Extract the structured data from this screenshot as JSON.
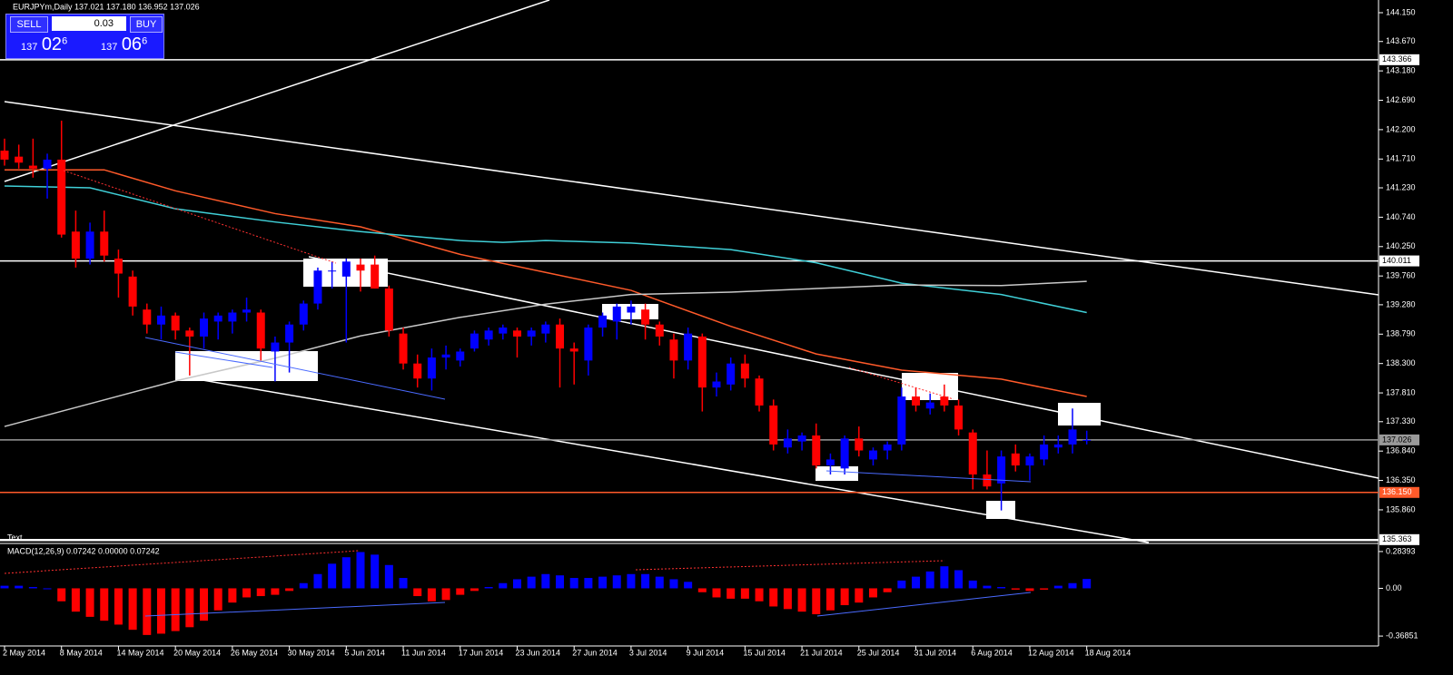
{
  "header": {
    "symbol": "EURJPYm,Daily 137.021 137.180 136.952 137.026"
  },
  "trade_panel": {
    "sell": "SELL",
    "buy": "BUY",
    "lot": "0.03",
    "sell_price": {
      "big": "137",
      "main": "02",
      "sup": "6"
    },
    "buy_price": {
      "big": "137",
      "main": "06",
      "sup": "6"
    }
  },
  "chart_data": {
    "type": "candlestick",
    "up_color": "#0000ff",
    "down_color": "#ff0000",
    "ylim": [
      135.345,
      144.362
    ],
    "yticks": [
      {
        "value": 144.15,
        "label": "144.150"
      },
      {
        "value": 143.67,
        "label": "143.670"
      },
      {
        "value": 143.18,
        "label": "143.180"
      },
      {
        "value": 142.69,
        "label": "142.690"
      },
      {
        "value": 142.2,
        "label": "142.200"
      },
      {
        "value": 141.71,
        "label": "141.710"
      },
      {
        "value": 141.23,
        "label": "141.230"
      },
      {
        "value": 140.74,
        "label": "140.740"
      },
      {
        "value": 140.25,
        "label": "140.250"
      },
      {
        "value": 139.76,
        "label": "139.760"
      },
      {
        "value": 139.28,
        "label": "139.280"
      },
      {
        "value": 138.79,
        "label": "138.790"
      },
      {
        "value": 138.3,
        "label": "138.300"
      },
      {
        "value": 137.81,
        "label": "137.810"
      },
      {
        "value": 137.33,
        "label": "137.330"
      },
      {
        "value": 136.84,
        "label": "136.840"
      },
      {
        "value": 136.35,
        "label": "136.350"
      },
      {
        "value": 135.86,
        "label": "135.860"
      }
    ],
    "price_lines": [
      {
        "value": 143.366,
        "color": "#ffffff"
      },
      {
        "value": 140.011,
        "color": "#ffffff"
      },
      {
        "value": 137.026,
        "color": "#9a9a9a"
      },
      {
        "value": {
          "value": 136.15,
          "label": "136.150"
        },
        "color": "#ff5a2a"
      },
      {
        "value": 135.363,
        "color": "#ffffff"
      }
    ],
    "annotation": "Text",
    "categories": [
      "2 May 2014",
      null,
      null,
      null,
      "8 May 2014",
      null,
      null,
      null,
      "14 May 2014",
      null,
      null,
      null,
      "20 May 2014",
      null,
      null,
      null,
      "26 May 2014",
      null,
      null,
      null,
      "30 May 2014",
      null,
      null,
      null,
      "5 Jun 2014",
      null,
      null,
      null,
      "11 Jun 2014",
      null,
      null,
      null,
      "17 Jun 2014",
      null,
      null,
      null,
      "23 Jun 2014",
      null,
      null,
      null,
      "27 Jun 2014",
      null,
      null,
      null,
      "3 Jul 2014",
      null,
      null,
      null,
      "9 Jul 2014",
      null,
      null,
      null,
      "15 Jul 2014",
      null,
      null,
      null,
      "21 Jul 2014",
      null,
      null,
      null,
      "25 Jul 2014",
      null,
      null,
      null,
      "31 Jul 2014",
      null,
      null,
      null,
      "6 Aug 2014",
      null,
      null,
      null,
      "12 Aug 2014",
      null,
      null,
      null,
      "18 Aug 2014"
    ],
    "open": [
      141.85,
      141.75,
      141.6,
      141.55,
      141.7,
      140.5,
      140.05,
      140.5,
      140.05,
      139.75,
      139.2,
      138.95,
      139.1,
      138.85,
      138.75,
      139.0,
      139.0,
      139.15,
      139.15,
      138.5,
      138.65,
      138.95,
      139.3,
      139.85,
      139.75,
      139.95,
      139.95,
      139.55,
      138.8,
      138.3,
      138.05,
      138.4,
      138.35,
      138.55,
      138.7,
      138.8,
      138.85,
      138.75,
      138.8,
      138.95,
      138.55,
      138.35,
      138.9,
      139.0,
      139.15,
      139.2,
      138.95,
      138.7,
      138.35,
      138.75,
      137.9,
      137.95,
      138.3,
      138.05,
      137.6,
      136.9,
      137.0,
      137.1,
      136.6,
      136.55,
      137.05,
      136.7,
      136.85,
      136.95,
      137.75,
      137.55,
      137.75,
      137.6,
      137.15,
      136.45,
      136.3,
      136.8,
      136.6,
      136.7,
      136.9,
      136.95,
      137.021
    ],
    "high": [
      142.05,
      141.95,
      142.05,
      141.8,
      142.35,
      140.85,
      140.65,
      140.85,
      140.2,
      139.85,
      139.3,
      139.25,
      139.15,
      138.9,
      139.15,
      139.15,
      139.2,
      139.4,
      139.2,
      138.75,
      139.0,
      139.35,
      139.9,
      140.0,
      140.05,
      140.05,
      140.1,
      139.6,
      138.9,
      138.45,
      138.55,
      138.6,
      138.55,
      138.85,
      138.9,
      138.95,
      138.9,
      138.9,
      139.0,
      139.05,
      138.65,
      138.95,
      139.15,
      139.3,
      139.35,
      139.3,
      139.0,
      138.8,
      138.9,
      138.8,
      138.15,
      138.4,
      138.45,
      138.1,
      137.7,
      137.2,
      137.15,
      137.3,
      136.8,
      137.1,
      137.25,
      136.9,
      137.0,
      137.9,
      137.9,
      137.8,
      137.95,
      137.7,
      137.2,
      136.85,
      136.85,
      136.95,
      136.8,
      137.1,
      137.1,
      137.55,
      137.18
    ],
    "low": [
      141.6,
      141.55,
      141.4,
      141.05,
      140.4,
      139.9,
      139.95,
      140.0,
      139.4,
      139.1,
      138.8,
      138.7,
      138.7,
      138.1,
      138.55,
      138.7,
      138.8,
      139.0,
      138.35,
      138.0,
      138.15,
      138.85,
      139.2,
      139.55,
      138.65,
      139.5,
      139.55,
      138.75,
      138.2,
      137.9,
      137.85,
      138.2,
      138.25,
      138.5,
      138.6,
      138.7,
      138.4,
      138.6,
      138.65,
      137.9,
      137.95,
      138.1,
      138.75,
      138.7,
      138.95,
      138.7,
      138.6,
      138.05,
      138.2,
      137.5,
      137.75,
      137.85,
      137.9,
      137.5,
      136.85,
      136.8,
      136.85,
      136.55,
      136.45,
      136.45,
      136.75,
      136.6,
      136.7,
      136.85,
      137.5,
      137.45,
      137.5,
      137.1,
      136.2,
      136.2,
      135.85,
      136.5,
      136.35,
      136.6,
      136.8,
      136.8,
      136.952
    ],
    "close": [
      141.7,
      141.65,
      141.55,
      141.7,
      140.45,
      140.05,
      140.5,
      140.1,
      139.8,
      139.25,
      138.95,
      139.1,
      138.85,
      138.75,
      139.05,
      139.1,
      139.15,
      139.2,
      138.55,
      138.65,
      138.95,
      139.3,
      139.85,
      139.85,
      140.0,
      139.85,
      139.55,
      138.85,
      138.3,
      138.05,
      138.4,
      138.45,
      138.5,
      138.8,
      138.85,
      138.9,
      138.75,
      138.85,
      138.95,
      138.55,
      138.5,
      138.9,
      139.1,
      139.25,
      139.25,
      138.95,
      138.75,
      138.35,
      138.8,
      137.9,
      138.0,
      138.3,
      138.05,
      137.6,
      136.95,
      137.05,
      137.1,
      136.6,
      136.7,
      137.05,
      136.85,
      136.85,
      136.95,
      137.75,
      137.6,
      137.65,
      137.6,
      137.2,
      136.45,
      136.25,
      136.75,
      136.6,
      136.75,
      136.95,
      136.95,
      137.2,
      137.026
    ],
    "moving_averages": [
      {
        "color": "#ff5a2a",
        "x": [
          0,
          7,
          12,
          19,
          25,
          32,
          38,
          44,
          51,
          57,
          63,
          70,
          76
        ],
        "values": [
          141.53,
          141.53,
          141.18,
          140.8,
          140.58,
          140.12,
          139.82,
          139.52,
          138.92,
          138.46,
          138.19,
          138.04,
          137.75
        ]
      },
      {
        "color": "#40d0d8",
        "x": [
          0,
          6,
          12,
          19,
          25,
          32,
          35,
          38,
          44,
          51,
          57,
          63,
          70,
          76
        ],
        "values": [
          141.26,
          141.23,
          140.88,
          140.66,
          140.5,
          140.35,
          140.32,
          140.35,
          140.31,
          140.2,
          139.98,
          139.64,
          139.45,
          139.15
        ]
      },
      {
        "color": "#c8c8c8",
        "x": [
          0,
          12,
          19,
          25,
          32,
          38,
          44,
          51,
          57,
          63,
          70,
          76
        ],
        "values": [
          137.25,
          138.01,
          138.39,
          138.76,
          139.07,
          139.29,
          139.45,
          139.49,
          139.55,
          139.61,
          139.6,
          139.67
        ]
      }
    ],
    "macd": {
      "label": "MACD(12,26,9) 0.07242 0.00000 0.07242",
      "ylim": [
        -0.4449,
        0.3464
      ],
      "yticks": [
        0.28393,
        {
          "value": 0,
          "label": "0.00"
        },
        -0.36851
      ],
      "values": [
        0.02,
        0.02,
        0.01,
        0.0,
        -0.1,
        -0.18,
        -0.22,
        -0.25,
        -0.28,
        -0.32,
        -0.36,
        -0.35,
        -0.33,
        -0.3,
        -0.25,
        -0.17,
        -0.11,
        -0.07,
        -0.06,
        -0.05,
        -0.02,
        0.04,
        0.11,
        0.19,
        0.24,
        0.28,
        0.26,
        0.18,
        0.08,
        -0.06,
        -0.1,
        -0.09,
        -0.05,
        -0.02,
        0.01,
        0.04,
        0.07,
        0.09,
        0.11,
        0.1,
        0.08,
        0.08,
        0.09,
        0.1,
        0.11,
        0.11,
        0.09,
        0.07,
        0.05,
        -0.03,
        -0.07,
        -0.08,
        -0.08,
        -0.1,
        -0.14,
        -0.16,
        -0.18,
        -0.2,
        -0.17,
        -0.13,
        -0.11,
        -0.07,
        -0.03,
        0.06,
        0.09,
        0.13,
        0.17,
        0.14,
        0.06,
        0.02,
        0.01,
        -0.01,
        -0.02,
        -0.01,
        0.02,
        0.04,
        0.07242
      ]
    }
  }
}
